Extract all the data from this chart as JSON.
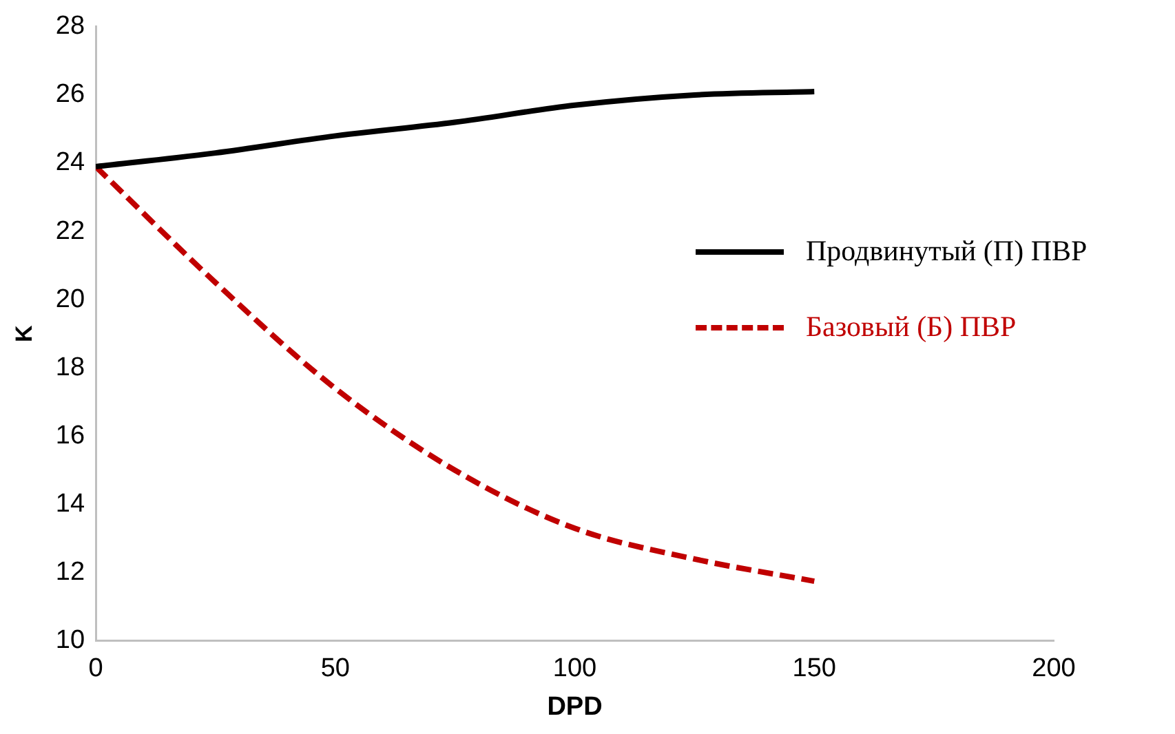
{
  "chart_data": {
    "type": "line",
    "xlabel": "DPD",
    "ylabel": "K",
    "xlim": [
      0,
      200
    ],
    "xticks": [
      0,
      50,
      100,
      150,
      200
    ],
    "ylim": [
      10,
      28
    ],
    "yticks": [
      10,
      12,
      14,
      16,
      18,
      20,
      22,
      24,
      26,
      28
    ],
    "grid": false,
    "legend": "right",
    "marker": "none",
    "series": [
      {
        "name": "Продвинутый (П) ПВР",
        "color": "#000000",
        "line_style": "solid",
        "x": [
          0,
          25,
          50,
          75,
          100,
          125,
          150
        ],
        "values": [
          23.9,
          24.3,
          24.8,
          25.2,
          25.7,
          26.0,
          26.1
        ]
      },
      {
        "name": "Базовый (Б) ПВР",
        "color": "#c00000",
        "line_style": "dashed",
        "x": [
          0,
          25,
          50,
          75,
          100,
          125,
          150
        ],
        "values": [
          23.9,
          20.5,
          17.4,
          15.0,
          13.3,
          12.4,
          11.75
        ]
      }
    ]
  }
}
